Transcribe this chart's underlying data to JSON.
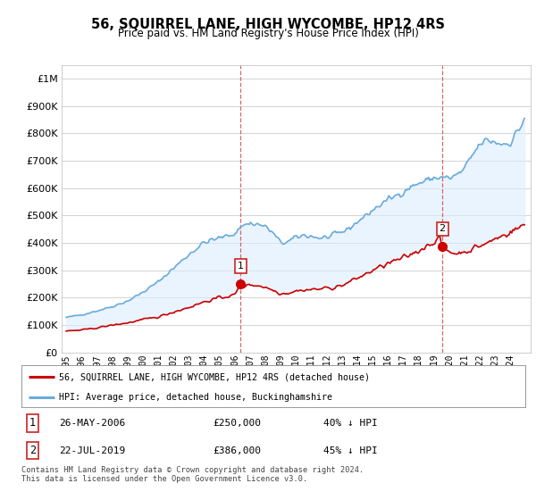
{
  "title": "56, SQUIRREL LANE, HIGH WYCOMBE, HP12 4RS",
  "subtitle": "Price paid vs. HM Land Registry's House Price Index (HPI)",
  "legend_line1": "56, SQUIRREL LANE, HIGH WYCOMBE, HP12 4RS (detached house)",
  "legend_line2": "HPI: Average price, detached house, Buckinghamshire",
  "footnote": "Contains HM Land Registry data © Crown copyright and database right 2024.\nThis data is licensed under the Open Government Licence v3.0.",
  "transaction1_date": "26-MAY-2006",
  "transaction1_price": "£250,000",
  "transaction1_hpi": "40% ↓ HPI",
  "transaction2_date": "22-JUL-2019",
  "transaction2_price": "£386,000",
  "transaction2_hpi": "45% ↓ HPI",
  "sale1_year": 2006.38,
  "sale1_price": 250000,
  "sale2_year": 2019.54,
  "sale2_price": 386000,
  "red_color": "#cc0000",
  "blue_color": "#6aabdb",
  "fill_color": "#ddeeff",
  "background_color": "#ffffff",
  "grid_color": "#cccccc",
  "ylim_min": 0,
  "ylim_max": 1050000,
  "xlim_min": 1994.7,
  "xlim_max": 2025.3
}
